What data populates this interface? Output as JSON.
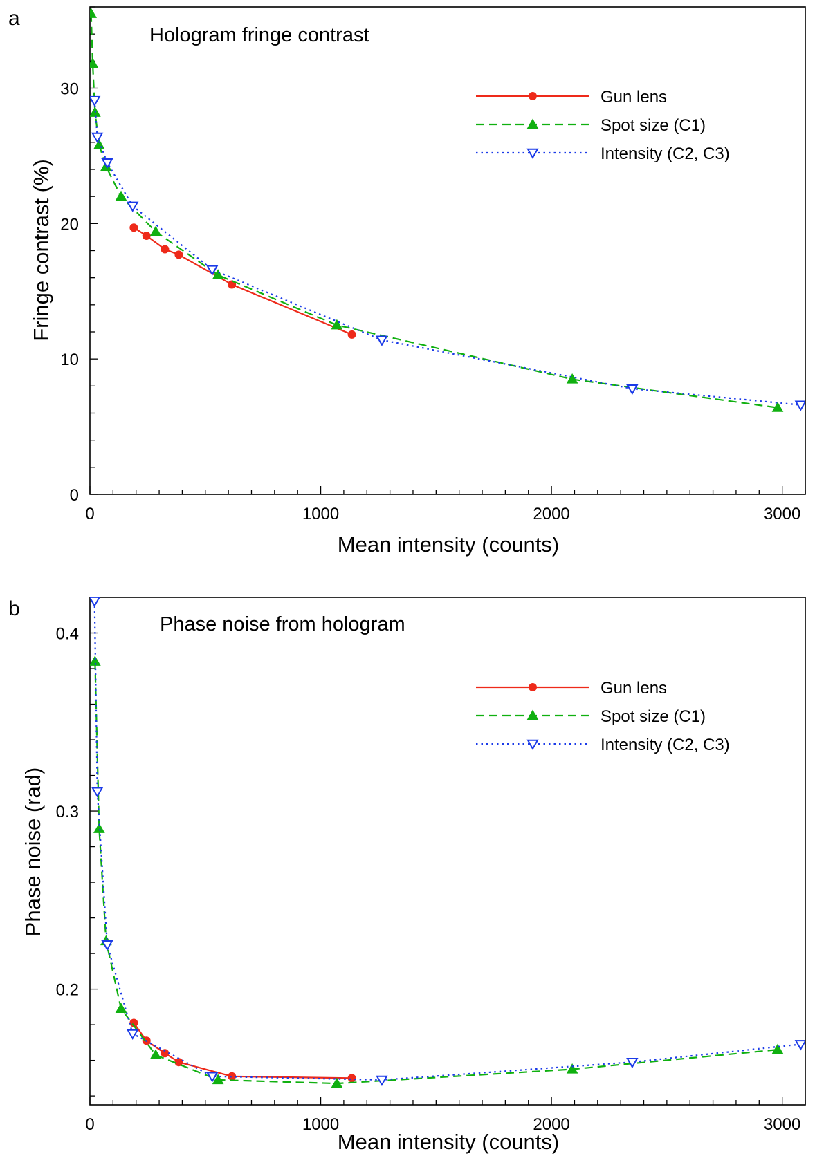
{
  "chart_data": [
    {
      "type": "line",
      "panel_label": "a",
      "title": "Hologram fringe contrast",
      "xlabel": "Mean intensity (counts)",
      "ylabel": "Fringe contrast (%)",
      "xlim": [
        0,
        3100
      ],
      "ylim": [
        0,
        36
      ],
      "x_ticks": [
        0,
        1000,
        2000,
        3000
      ],
      "x_tick_labels": [
        "0",
        "1000",
        "2000",
        "3000"
      ],
      "y_ticks": [
        0,
        10,
        20,
        30
      ],
      "y_tick_labels": [
        "0",
        "10",
        "20",
        "30"
      ],
      "x_minor_step": 100,
      "y_minor_step": 2,
      "grid": false,
      "legend_position": "top-right",
      "series": [
        {
          "name": "Gun lens",
          "color": "#ee2a1a",
          "dash": "solid",
          "marker": "filled-circle",
          "x": [
            190,
            245,
            325,
            385,
            615,
            1135
          ],
          "y": [
            19.7,
            19.1,
            18.1,
            17.7,
            15.5,
            11.8
          ]
        },
        {
          "name": "Spot size (C1)",
          "color": "#10b010",
          "dash": "dashed",
          "marker": "filled-triangle-up",
          "x": [
            5,
            12,
            22,
            40,
            70,
            135,
            285,
            555,
            1070,
            2090,
            2980
          ],
          "y": [
            35.5,
            31.8,
            28.2,
            25.8,
            24.2,
            22.0,
            19.4,
            16.2,
            12.5,
            8.5,
            6.4
          ]
        },
        {
          "name": "Intensity (C2, C3)",
          "color": "#1a3ae8",
          "dash": "dotted",
          "marker": "open-triangle-down",
          "x": [
            20,
            32,
            75,
            185,
            530,
            1265,
            2350,
            3080
          ],
          "y": [
            29.1,
            26.4,
            24.5,
            21.3,
            16.6,
            11.4,
            7.8,
            6.6
          ]
        }
      ]
    },
    {
      "type": "line",
      "panel_label": "b",
      "title": "Phase noise from hologram",
      "xlabel": "Mean intensity (counts)",
      "ylabel": "Phase noise (rad)",
      "xlim": [
        0,
        3100
      ],
      "ylim": [
        0.135,
        0.42
      ],
      "x_ticks": [
        0,
        1000,
        2000,
        3000
      ],
      "x_tick_labels": [
        "0",
        "1000",
        "2000",
        "3000"
      ],
      "y_ticks": [
        0.2,
        0.3,
        0.4
      ],
      "y_tick_labels": [
        "0.2",
        "0.3",
        "0.4"
      ],
      "x_minor_step": 100,
      "y_minor_step": 0.02,
      "grid": false,
      "legend_position": "top-right",
      "series": [
        {
          "name": "Gun lens",
          "color": "#ee2a1a",
          "dash": "solid",
          "marker": "filled-circle",
          "x": [
            190,
            245,
            325,
            385,
            615,
            1135
          ],
          "y": [
            0.181,
            0.171,
            0.164,
            0.159,
            0.151,
            0.15
          ]
        },
        {
          "name": "Spot size (C1)",
          "color": "#10b010",
          "dash": "dashed",
          "marker": "filled-triangle-up",
          "x": [
            22,
            40,
            70,
            135,
            285,
            555,
            1070,
            2090,
            2980
          ],
          "y": [
            0.384,
            0.29,
            0.227,
            0.189,
            0.163,
            0.149,
            0.147,
            0.155,
            0.166
          ]
        },
        {
          "name": "Intensity (C2, C3)",
          "color": "#1a3ae8",
          "dash": "dotted",
          "marker": "open-triangle-down",
          "x": [
            20,
            32,
            75,
            185,
            530,
            1265,
            2350,
            3080
          ],
          "y": [
            0.418,
            0.311,
            0.225,
            0.175,
            0.151,
            0.149,
            0.159,
            0.169
          ]
        }
      ]
    }
  ]
}
